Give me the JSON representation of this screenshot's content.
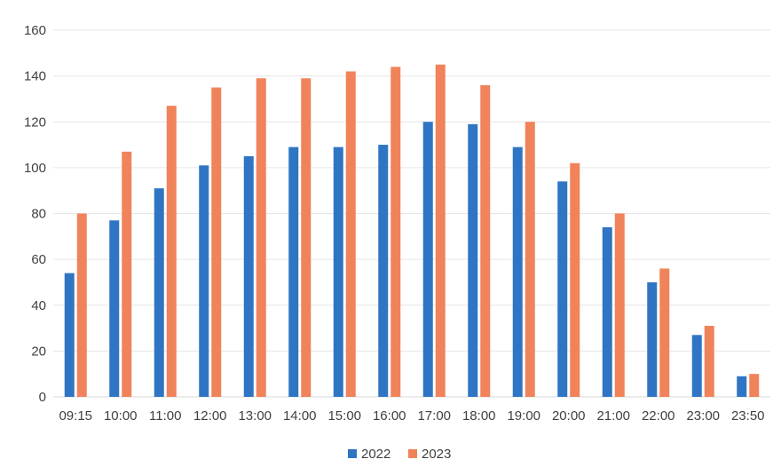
{
  "chart_data": {
    "type": "bar",
    "categories": [
      "09:15",
      "10:00",
      "11:00",
      "12:00",
      "13:00",
      "14:00",
      "15:00",
      "16:00",
      "17:00",
      "18:00",
      "19:00",
      "20:00",
      "21:00",
      "22:00",
      "23:00",
      "23:50"
    ],
    "series": [
      {
        "name": "2022",
        "color": "#2f75c3",
        "values": [
          54,
          77,
          91,
          101,
          105,
          109,
          109,
          110,
          120,
          119,
          109,
          94,
          74,
          50,
          27,
          9
        ]
      },
      {
        "name": "2023",
        "color": "#f0835a",
        "values": [
          80,
          107,
          127,
          135,
          139,
          139,
          142,
          144,
          145,
          136,
          120,
          102,
          80,
          56,
          31,
          10
        ]
      }
    ],
    "yticks": [
      "0",
      "20",
      "40",
      "60",
      "80",
      "100",
      "120",
      "140",
      "160"
    ],
    "ylim": [
      0,
      160
    ],
    "grid": true,
    "legend_position": "bottom",
    "title": "",
    "xlabel": "",
    "ylabel": ""
  }
}
